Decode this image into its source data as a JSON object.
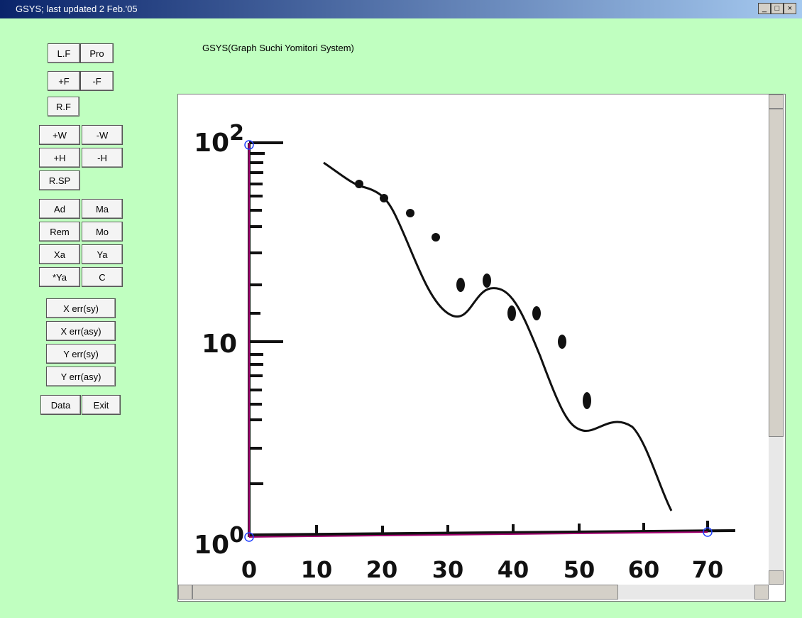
{
  "window": {
    "title": "GSYS;  last updated  2 Feb.'05"
  },
  "header": {
    "title": "GSYS(Graph Suchi Yomitori System)"
  },
  "buttons": [
    "L.F",
    "Pro",
    "+F",
    "-F",
    "R.F",
    "+W",
    "-W",
    "+H",
    "-H",
    "R.SP",
    "Ad",
    "Ma",
    "Rem",
    "Mo",
    "Xa",
    "Ya",
    "*Ya",
    "C",
    "X err(sy)",
    "X err(asy)",
    "Y err(sy)",
    "Y err(asy)",
    "Data",
    "Exit"
  ],
  "graph": {
    "y_labels": [
      {
        "base": "10",
        "exp": "2"
      },
      {
        "base": "10"
      },
      {
        "base": "10",
        "exp": "0"
      }
    ],
    "x_labels": [
      "0",
      "10",
      "20",
      "30",
      "40",
      "50",
      "60",
      "70"
    ]
  }
}
